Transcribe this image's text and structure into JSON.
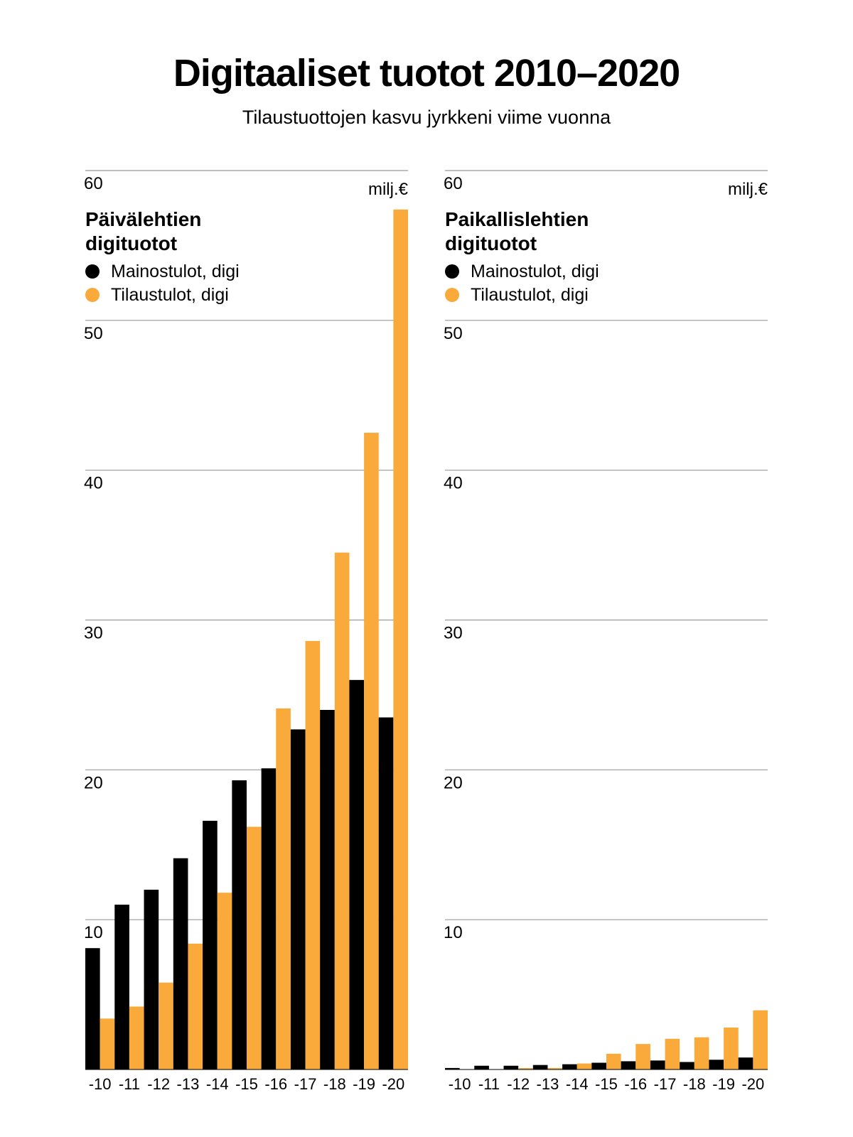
{
  "header": {
    "title": "Digitaaliset tuotot 2010–2020",
    "subtitle": "Tilaustuottojen kasvu jyrkkeni viime vuonna"
  },
  "colors": {
    "ads": "#000000",
    "subs": "#F9AA3B",
    "grid": "#999999"
  },
  "chart_data": [
    {
      "type": "bar",
      "title_lines": [
        "Päivälehtien",
        "digituotot"
      ],
      "unit": "milj.€",
      "ylim": [
        0,
        60
      ],
      "yticks": [
        "10",
        "20",
        "30",
        "40",
        "50",
        "60"
      ],
      "categories": [
        "-10",
        "-11",
        "-12",
        "-13",
        "-14",
        "-15",
        "-16",
        "-17",
        "-18",
        "-19",
        "-20"
      ],
      "series": [
        {
          "name": "Mainostulot, digi",
          "values": [
            8.1,
            11.0,
            12.0,
            14.1,
            16.6,
            19.3,
            20.1,
            22.7,
            24.0,
            26.0,
            23.5
          ]
        },
        {
          "name": "Tilaustulot, digi",
          "values": [
            3.4,
            4.2,
            5.8,
            8.4,
            11.8,
            16.2,
            24.1,
            28.6,
            34.5,
            42.5,
            57.4
          ]
        }
      ]
    },
    {
      "type": "bar",
      "title_lines": [
        "Paikallislehtien",
        "digituotot"
      ],
      "unit": "milj.€",
      "ylim": [
        0,
        60
      ],
      "yticks": [
        "10",
        "20",
        "30",
        "40",
        "50",
        "60"
      ],
      "categories": [
        "-10",
        "-11",
        "-12",
        "-13",
        "-14",
        "-15",
        "-16",
        "-17",
        "-18",
        "-19",
        "-20"
      ],
      "series": [
        {
          "name": "Mainostulot, digi",
          "values": [
            0.1,
            0.25,
            0.25,
            0.3,
            0.35,
            0.45,
            0.55,
            0.6,
            0.5,
            0.65,
            0.8
          ]
        },
        {
          "name": "Tilaustulot, digi",
          "values": [
            0.0,
            0.0,
            0.05,
            0.1,
            0.4,
            1.05,
            1.7,
            2.05,
            2.15,
            2.8,
            3.95
          ]
        }
      ]
    }
  ]
}
